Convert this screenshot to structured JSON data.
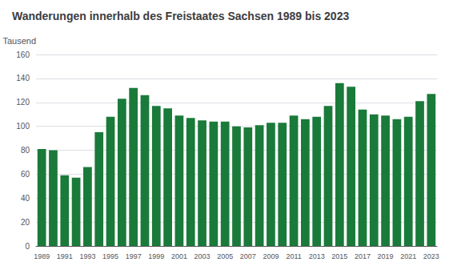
{
  "chart_data": {
    "type": "bar",
    "title": "Wanderungen innerhalb des Freistaates Sachsen 1989 bis 2023",
    "ylabel": "Tausend",
    "categories": [
      "1989",
      null,
      "1991",
      null,
      "1993",
      null,
      "1995",
      null,
      "1997",
      null,
      "1999",
      null,
      "2001",
      null,
      "2003",
      null,
      "2005",
      null,
      "2007",
      null,
      "2009",
      null,
      "2011",
      null,
      "2013",
      null,
      "2015",
      null,
      "2017",
      null,
      "2019",
      null,
      "2021",
      null,
      "2023"
    ],
    "values": [
      81,
      80,
      59,
      57,
      66,
      95,
      108,
      123,
      132,
      126,
      117,
      115,
      109,
      107,
      105,
      104,
      104,
      100,
      99,
      101,
      103,
      103,
      109,
      106,
      108,
      117,
      136,
      133,
      114,
      110,
      109,
      106,
      108,
      121,
      127
    ],
    "color": "#1a7a3a",
    "ylim": [
      0,
      160
    ],
    "yticks": [
      0,
      20,
      40,
      60,
      80,
      100,
      120,
      140,
      160
    ],
    "grid": true
  }
}
